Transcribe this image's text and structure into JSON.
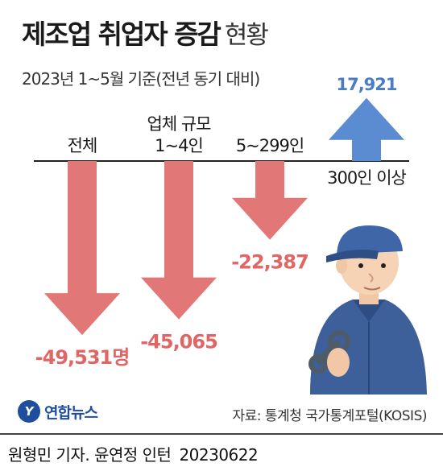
{
  "title": "제조업 취업자 증감",
  "title_suffix": "현황",
  "subtitle": "2023년 1~5월 기준(전년 동기 대비)",
  "chart_data": {
    "type": "bar",
    "categories": [
      "전체",
      "업체 규모\n1~4인",
      "5~299인",
      "300인 이상"
    ],
    "values": [
      -49531,
      -45065,
      -22387,
      17921
    ],
    "value_labels": [
      "-49,531명",
      "-45,065",
      "-22,387",
      "17,921"
    ],
    "colors": {
      "negative": "#e27777",
      "positive": "#5b8bd0"
    },
    "ylim": [
      -55000,
      22000
    ]
  },
  "logo": {
    "mark": "Y",
    "text": "연합뉴스"
  },
  "source": "자료: 통계청 국가통계포털(KOSIS)",
  "credit": {
    "author": "원형민 기자. 윤연정 인턴",
    "date": "20230622"
  }
}
